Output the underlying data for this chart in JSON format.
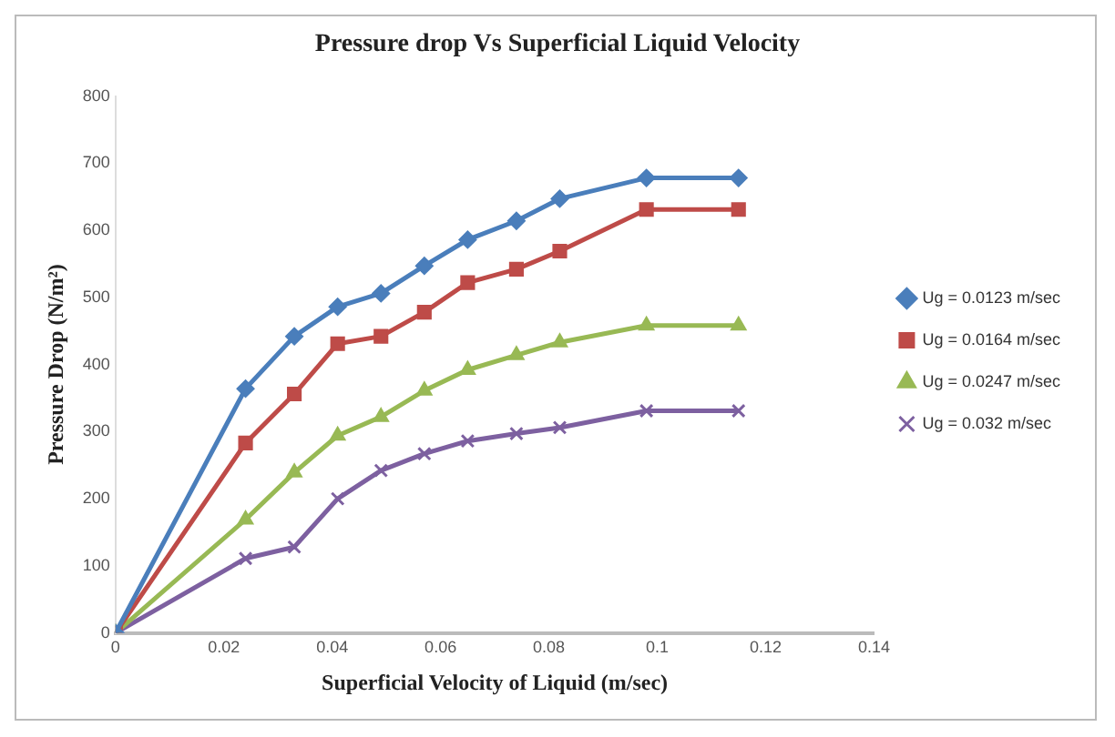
{
  "chart_data": {
    "type": "line",
    "title": "Pressure drop Vs Superficial Liquid Velocity",
    "xlabel": "Superficial Velocity of Liquid (m/sec)",
    "ylabel": "Pressure Drop (N/m²)",
    "x": [
      0,
      0.024,
      0.033,
      0.041,
      0.049,
      0.057,
      0.065,
      0.074,
      0.082,
      0.098,
      0.115
    ],
    "series": [
      {
        "name": "Ug = 0.0123 m/sec",
        "color": "#4a7ebb",
        "marker": "diamond",
        "values": [
          0,
          364,
          442,
          486,
          506,
          547,
          586,
          614,
          647,
          678,
          678
        ]
      },
      {
        "name": "Ug = 0.0164 m/sec",
        "color": "#be4b48",
        "marker": "square",
        "values": [
          0,
          283,
          356,
          431,
          442,
          478,
          522,
          542,
          569,
          631,
          631
        ]
      },
      {
        "name": "Ug = 0.0247 m/sec",
        "color": "#98b954",
        "marker": "triangle",
        "values": [
          0,
          169,
          239,
          294,
          322,
          361,
          392,
          414,
          433,
          458,
          458
        ]
      },
      {
        "name": "Ug = 0.032 m/sec",
        "color": "#7d60a0",
        "marker": "cross",
        "values": [
          0,
          111,
          128,
          200,
          242,
          267,
          286,
          297,
          306,
          331,
          331
        ]
      }
    ],
    "xlim": [
      0,
      0.14
    ],
    "xticks": [
      0,
      0.02,
      0.04,
      0.06,
      0.08,
      0.1,
      0.12,
      0.14
    ],
    "ylim": [
      0,
      800
    ],
    "yticks": [
      0,
      100,
      200,
      300,
      400,
      500,
      600,
      700,
      800
    ],
    "grid": false,
    "legend": "right"
  }
}
